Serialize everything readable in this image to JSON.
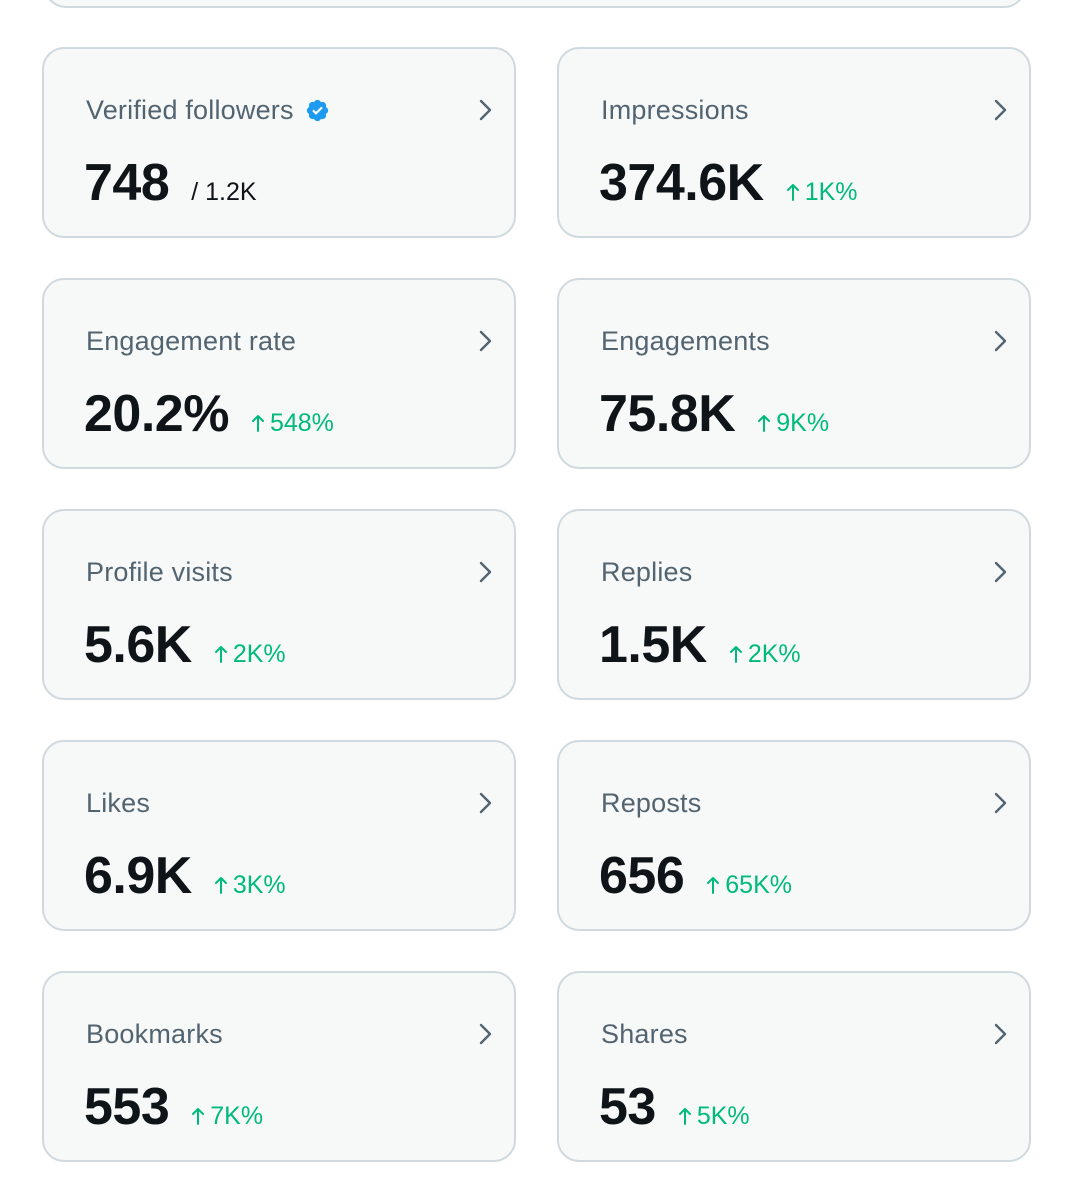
{
  "colors": {
    "card_bg": "#f7f9f9",
    "card_border": "#cfd9de",
    "label": "#536471",
    "value": "#0f1419",
    "positive": "#00ba7c",
    "verified": "#1d9bf0"
  },
  "cards": [
    {
      "label": "Verified followers",
      "value": "748",
      "sub": "/ 1.2K",
      "change": null,
      "icon": "verified-badge-icon"
    },
    {
      "label": "Impressions",
      "value": "374.6K",
      "sub": null,
      "change": "1K%"
    },
    {
      "label": "Engagement rate",
      "value": "20.2%",
      "sub": null,
      "change": "548%"
    },
    {
      "label": "Engagements",
      "value": "75.8K",
      "sub": null,
      "change": "9K%"
    },
    {
      "label": "Profile visits",
      "value": "5.6K",
      "sub": null,
      "change": "2K%"
    },
    {
      "label": "Replies",
      "value": "1.5K",
      "sub": null,
      "change": "2K%"
    },
    {
      "label": "Likes",
      "value": "6.9K",
      "sub": null,
      "change": "3K%"
    },
    {
      "label": "Reposts",
      "value": "656",
      "sub": null,
      "change": "65K%"
    },
    {
      "label": "Bookmarks",
      "value": "553",
      "sub": null,
      "change": "7K%"
    },
    {
      "label": "Shares",
      "value": "53",
      "sub": null,
      "change": "5K%"
    }
  ]
}
